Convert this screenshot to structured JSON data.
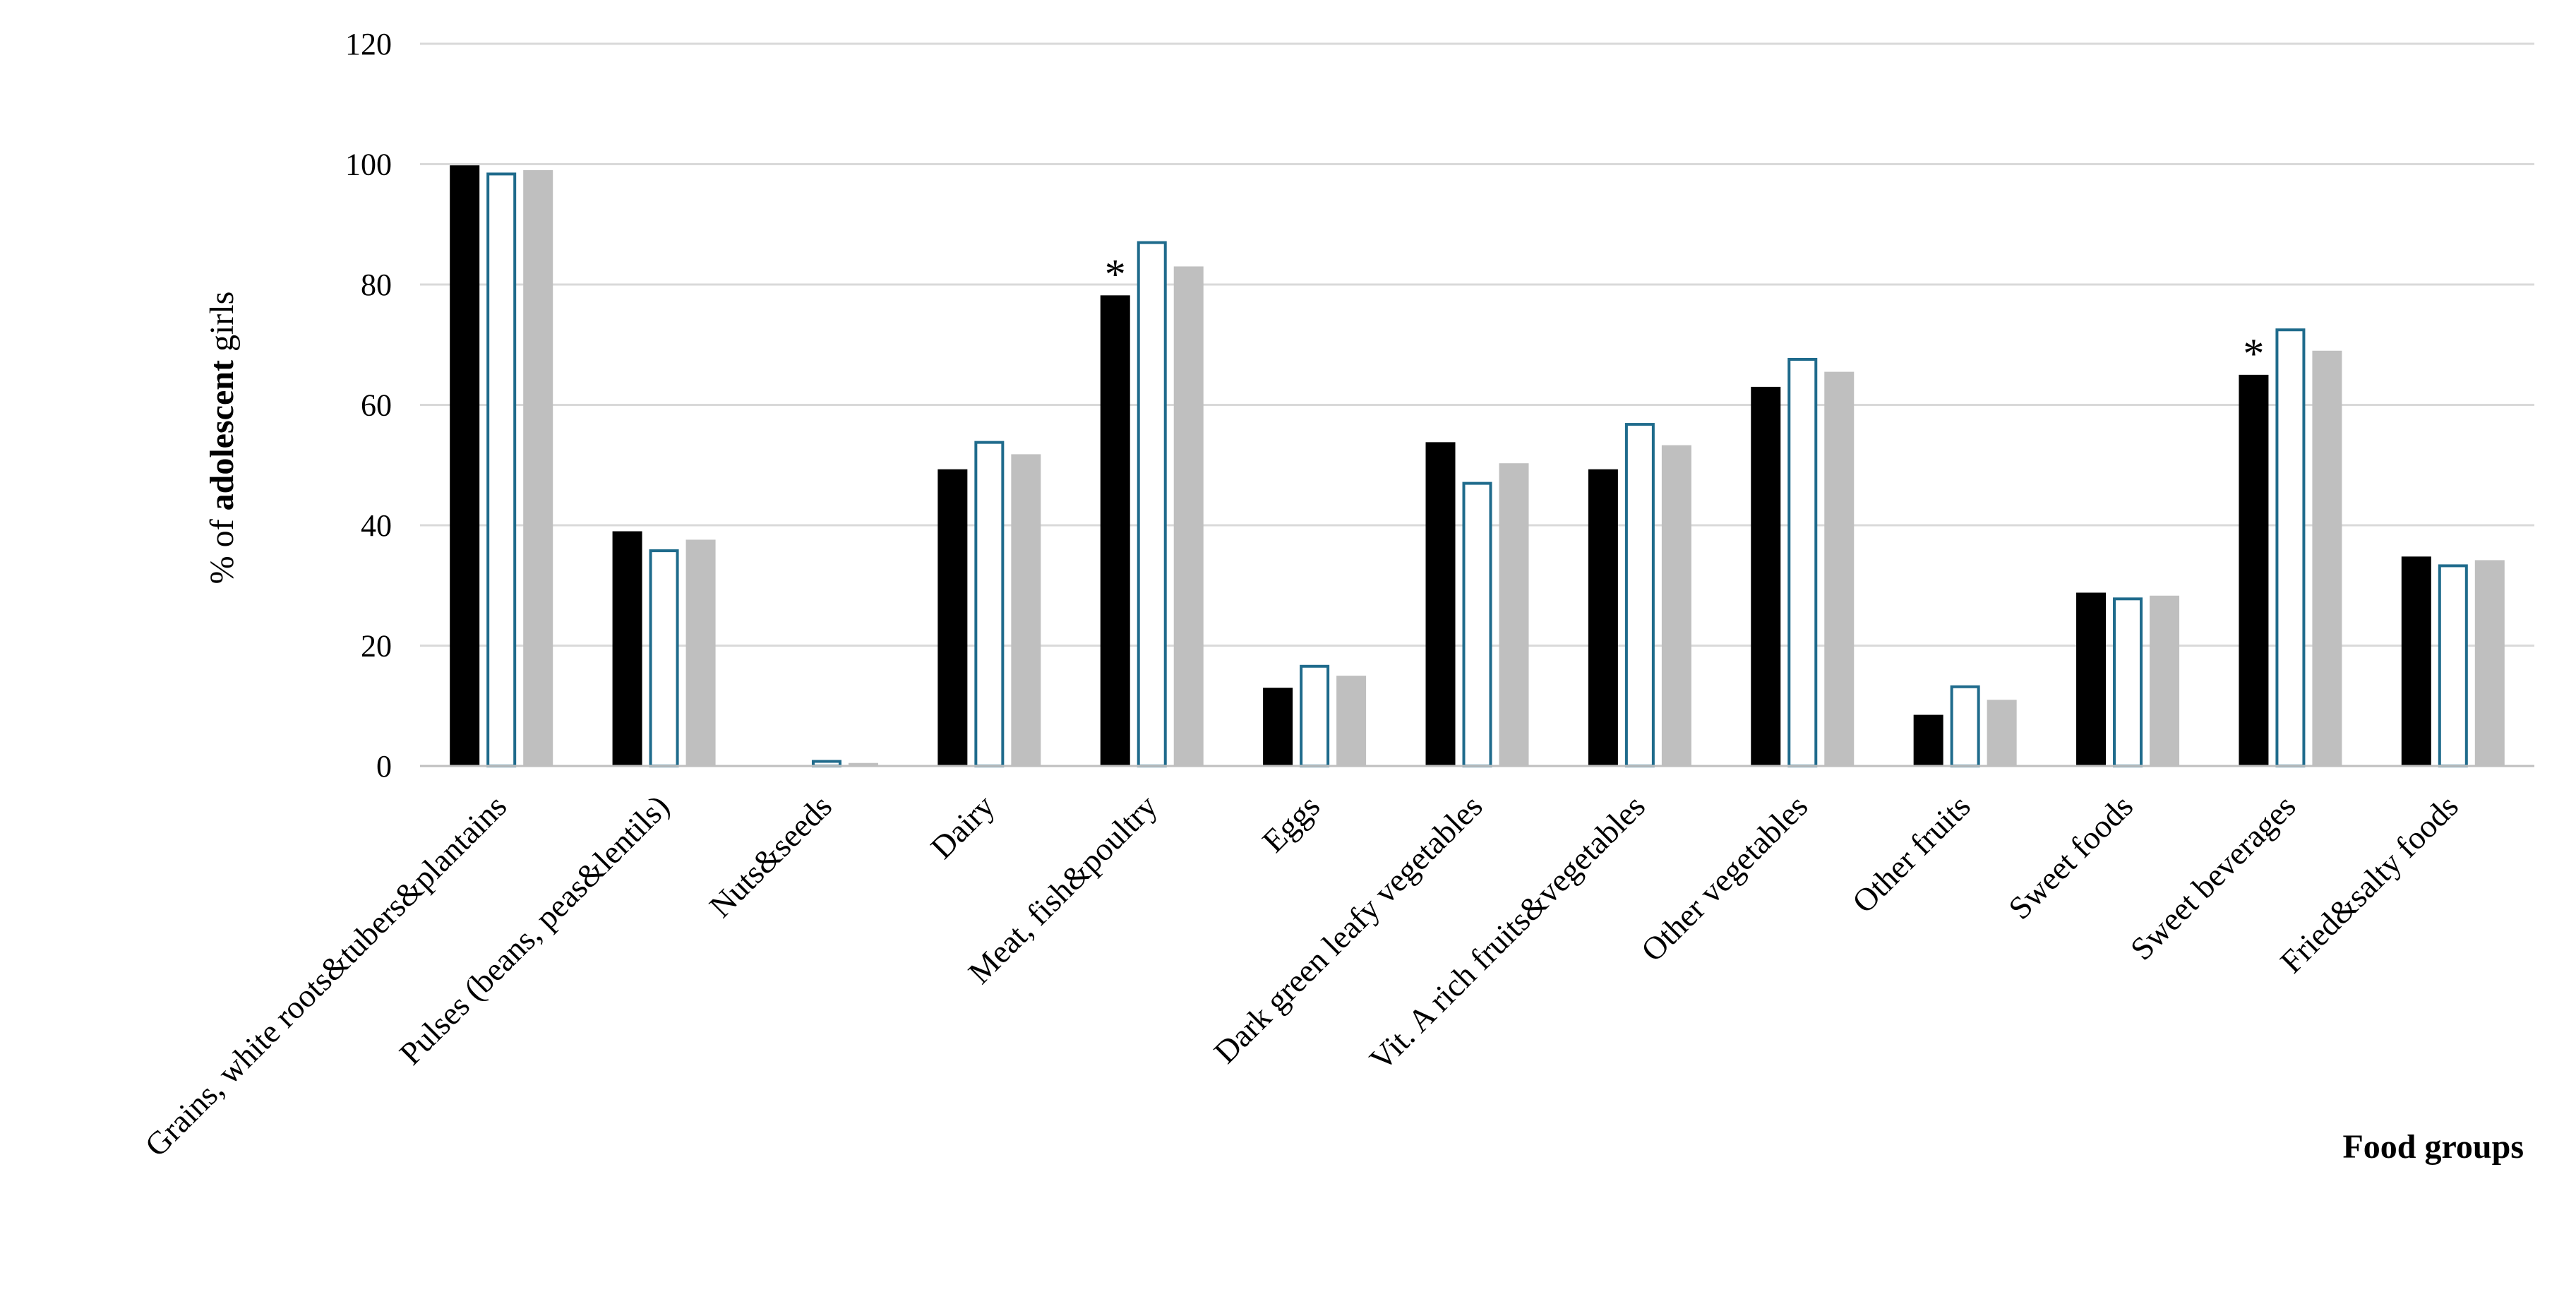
{
  "chart_data": {
    "type": "bar",
    "categories": [
      "Grains, white roots&tubers&plantains",
      "Pulses (beans, peas&lentils)",
      "Nuts&seeds",
      "Dairy",
      "Meat, fish&poultry",
      "Eggs",
      "Dark green leafy vegetables",
      "Vit. A rich fruits&vegetables",
      "Other vegetables",
      "Other fruits",
      "Sweet foods",
      "Sweet beverages",
      "Fried&salty foods"
    ],
    "series": [
      {
        "values": [
          99.8,
          39,
          0,
          49.3,
          78.2,
          13,
          53.8,
          49.3,
          63,
          8.5,
          28.8,
          65,
          34.8
        ],
        "color": "#000000",
        "style": "filled"
      },
      {
        "values": [
          98.6,
          36,
          1,
          54,
          87.2,
          16.8,
          47.2,
          57,
          67.8,
          13.4,
          28,
          72.7,
          33.5
        ],
        "color": "#1f6b8c",
        "style": "outline"
      },
      {
        "values": [
          99,
          37.6,
          0.5,
          51.8,
          83,
          15,
          50.3,
          53.3,
          65.5,
          11,
          28.3,
          69,
          34.2
        ],
        "color": "#bfbfbf",
        "style": "filled"
      }
    ],
    "ylim": [
      0,
      120
    ],
    "yticks": [
      "0",
      "20",
      "40",
      "60",
      "80",
      "100",
      "120"
    ],
    "ylabel": {
      "prefix": "% of ",
      "bold": "adolescent",
      "suffix": " girls"
    },
    "xlabel": "Food groups",
    "annotations": [
      {
        "category_index": 4,
        "text": "*"
      },
      {
        "category_index": 11,
        "text": "*"
      }
    ],
    "grid": true,
    "legend": "none"
  }
}
